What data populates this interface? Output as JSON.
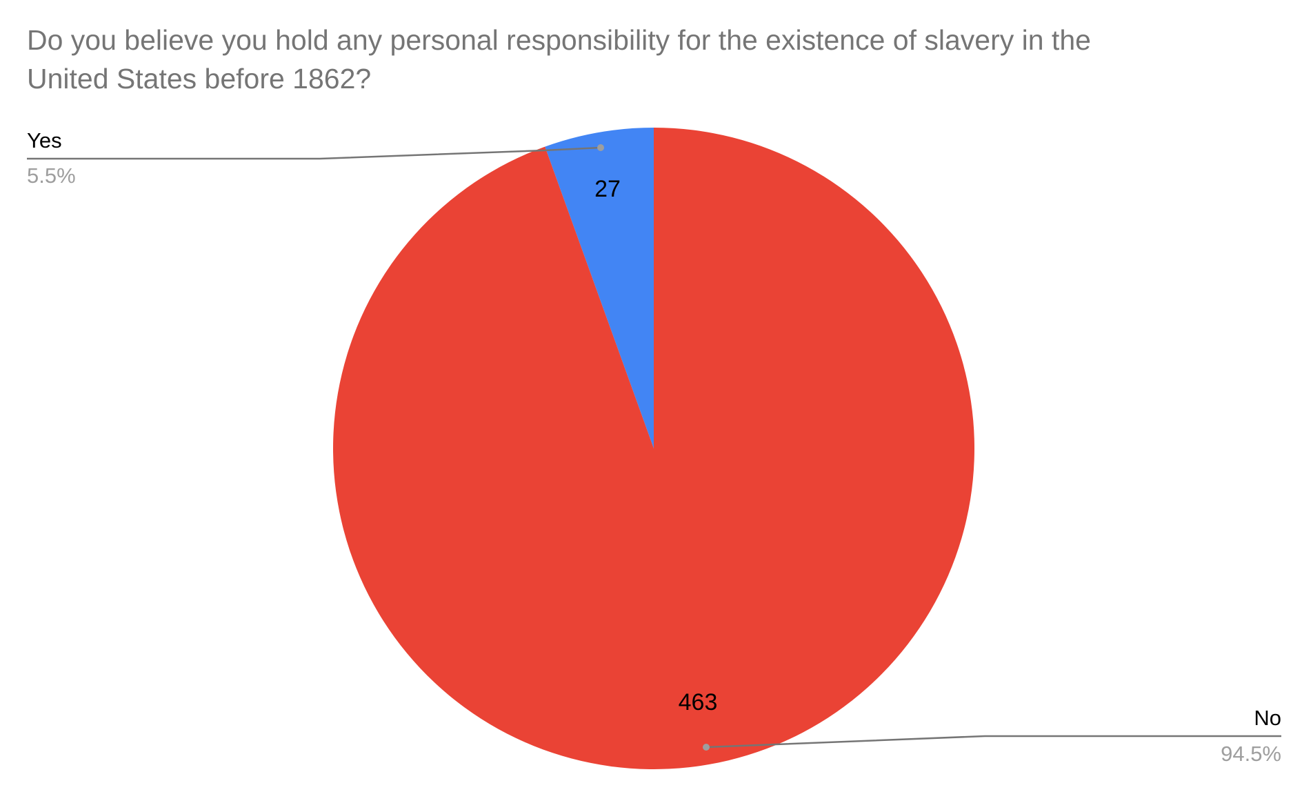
{
  "chart_data": {
    "type": "pie",
    "title": "Do you believe you hold any personal responsibility for the existence of slavery in the United States before 1862?",
    "categories": [
      "Yes",
      "No"
    ],
    "values": [
      27,
      463
    ],
    "percent_labels": [
      "5.5%",
      "94.5%"
    ],
    "colors": [
      "#4285f4",
      "#ea4335"
    ]
  }
}
